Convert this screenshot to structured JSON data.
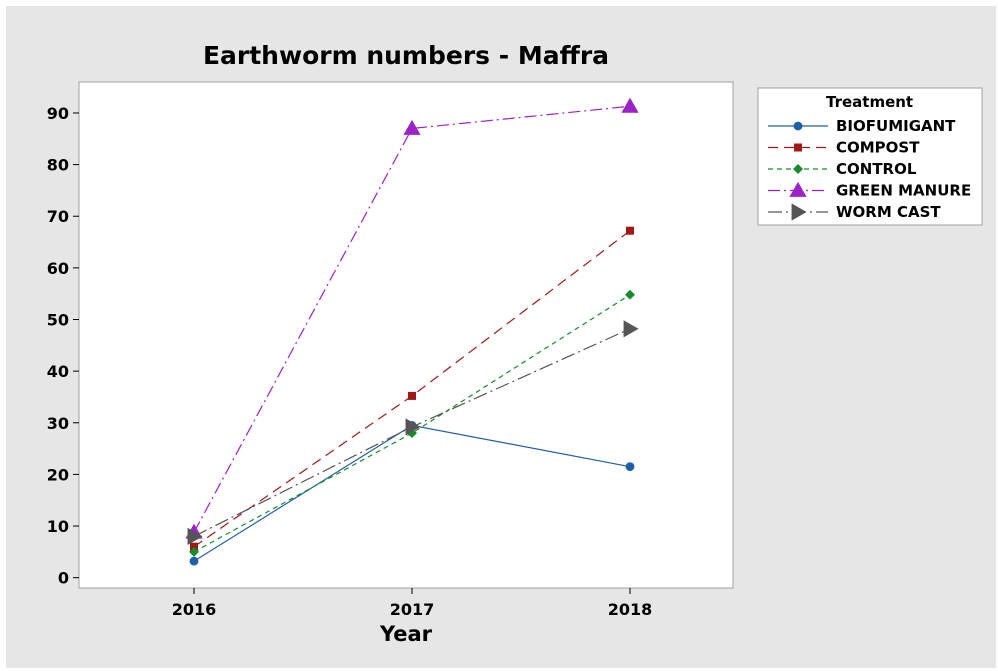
{
  "chart_data": {
    "type": "line",
    "title": "Earthworm numbers - Maffra",
    "xlabel": "Year",
    "ylabel": "",
    "x": [
      "2016",
      "2017",
      "2018"
    ],
    "ylim": [
      -2,
      96
    ],
    "yticks": [
      0,
      10,
      20,
      30,
      40,
      50,
      60,
      70,
      80,
      90
    ],
    "grid": false,
    "legend": {
      "title": "Treatment",
      "placement": "right"
    },
    "series": [
      {
        "name": "BIOFUMIGANT",
        "values": [
          3.2,
          29.5,
          21.5
        ],
        "color": "#1f5fa8",
        "marker": "circle",
        "dash": ""
      },
      {
        "name": "COMPOST",
        "values": [
          6.0,
          35.2,
          67.2
        ],
        "color": "#a01818",
        "marker": "square",
        "dash": "10,6"
      },
      {
        "name": "CONTROL",
        "values": [
          5.0,
          28.0,
          54.8
        ],
        "color": "#168c2c",
        "marker": "diamond",
        "dash": "5,4"
      },
      {
        "name": "GREEN MANURE",
        "values": [
          8.8,
          87.0,
          91.3
        ],
        "color": "#9c22c8",
        "marker": "triangle-up",
        "dash": "12,4,2,4"
      },
      {
        "name": "WORM CAST",
        "values": [
          8.0,
          29.2,
          48.2
        ],
        "color": "#555555",
        "marker": "triangle-right",
        "dash": "14,4,2,4"
      }
    ]
  }
}
